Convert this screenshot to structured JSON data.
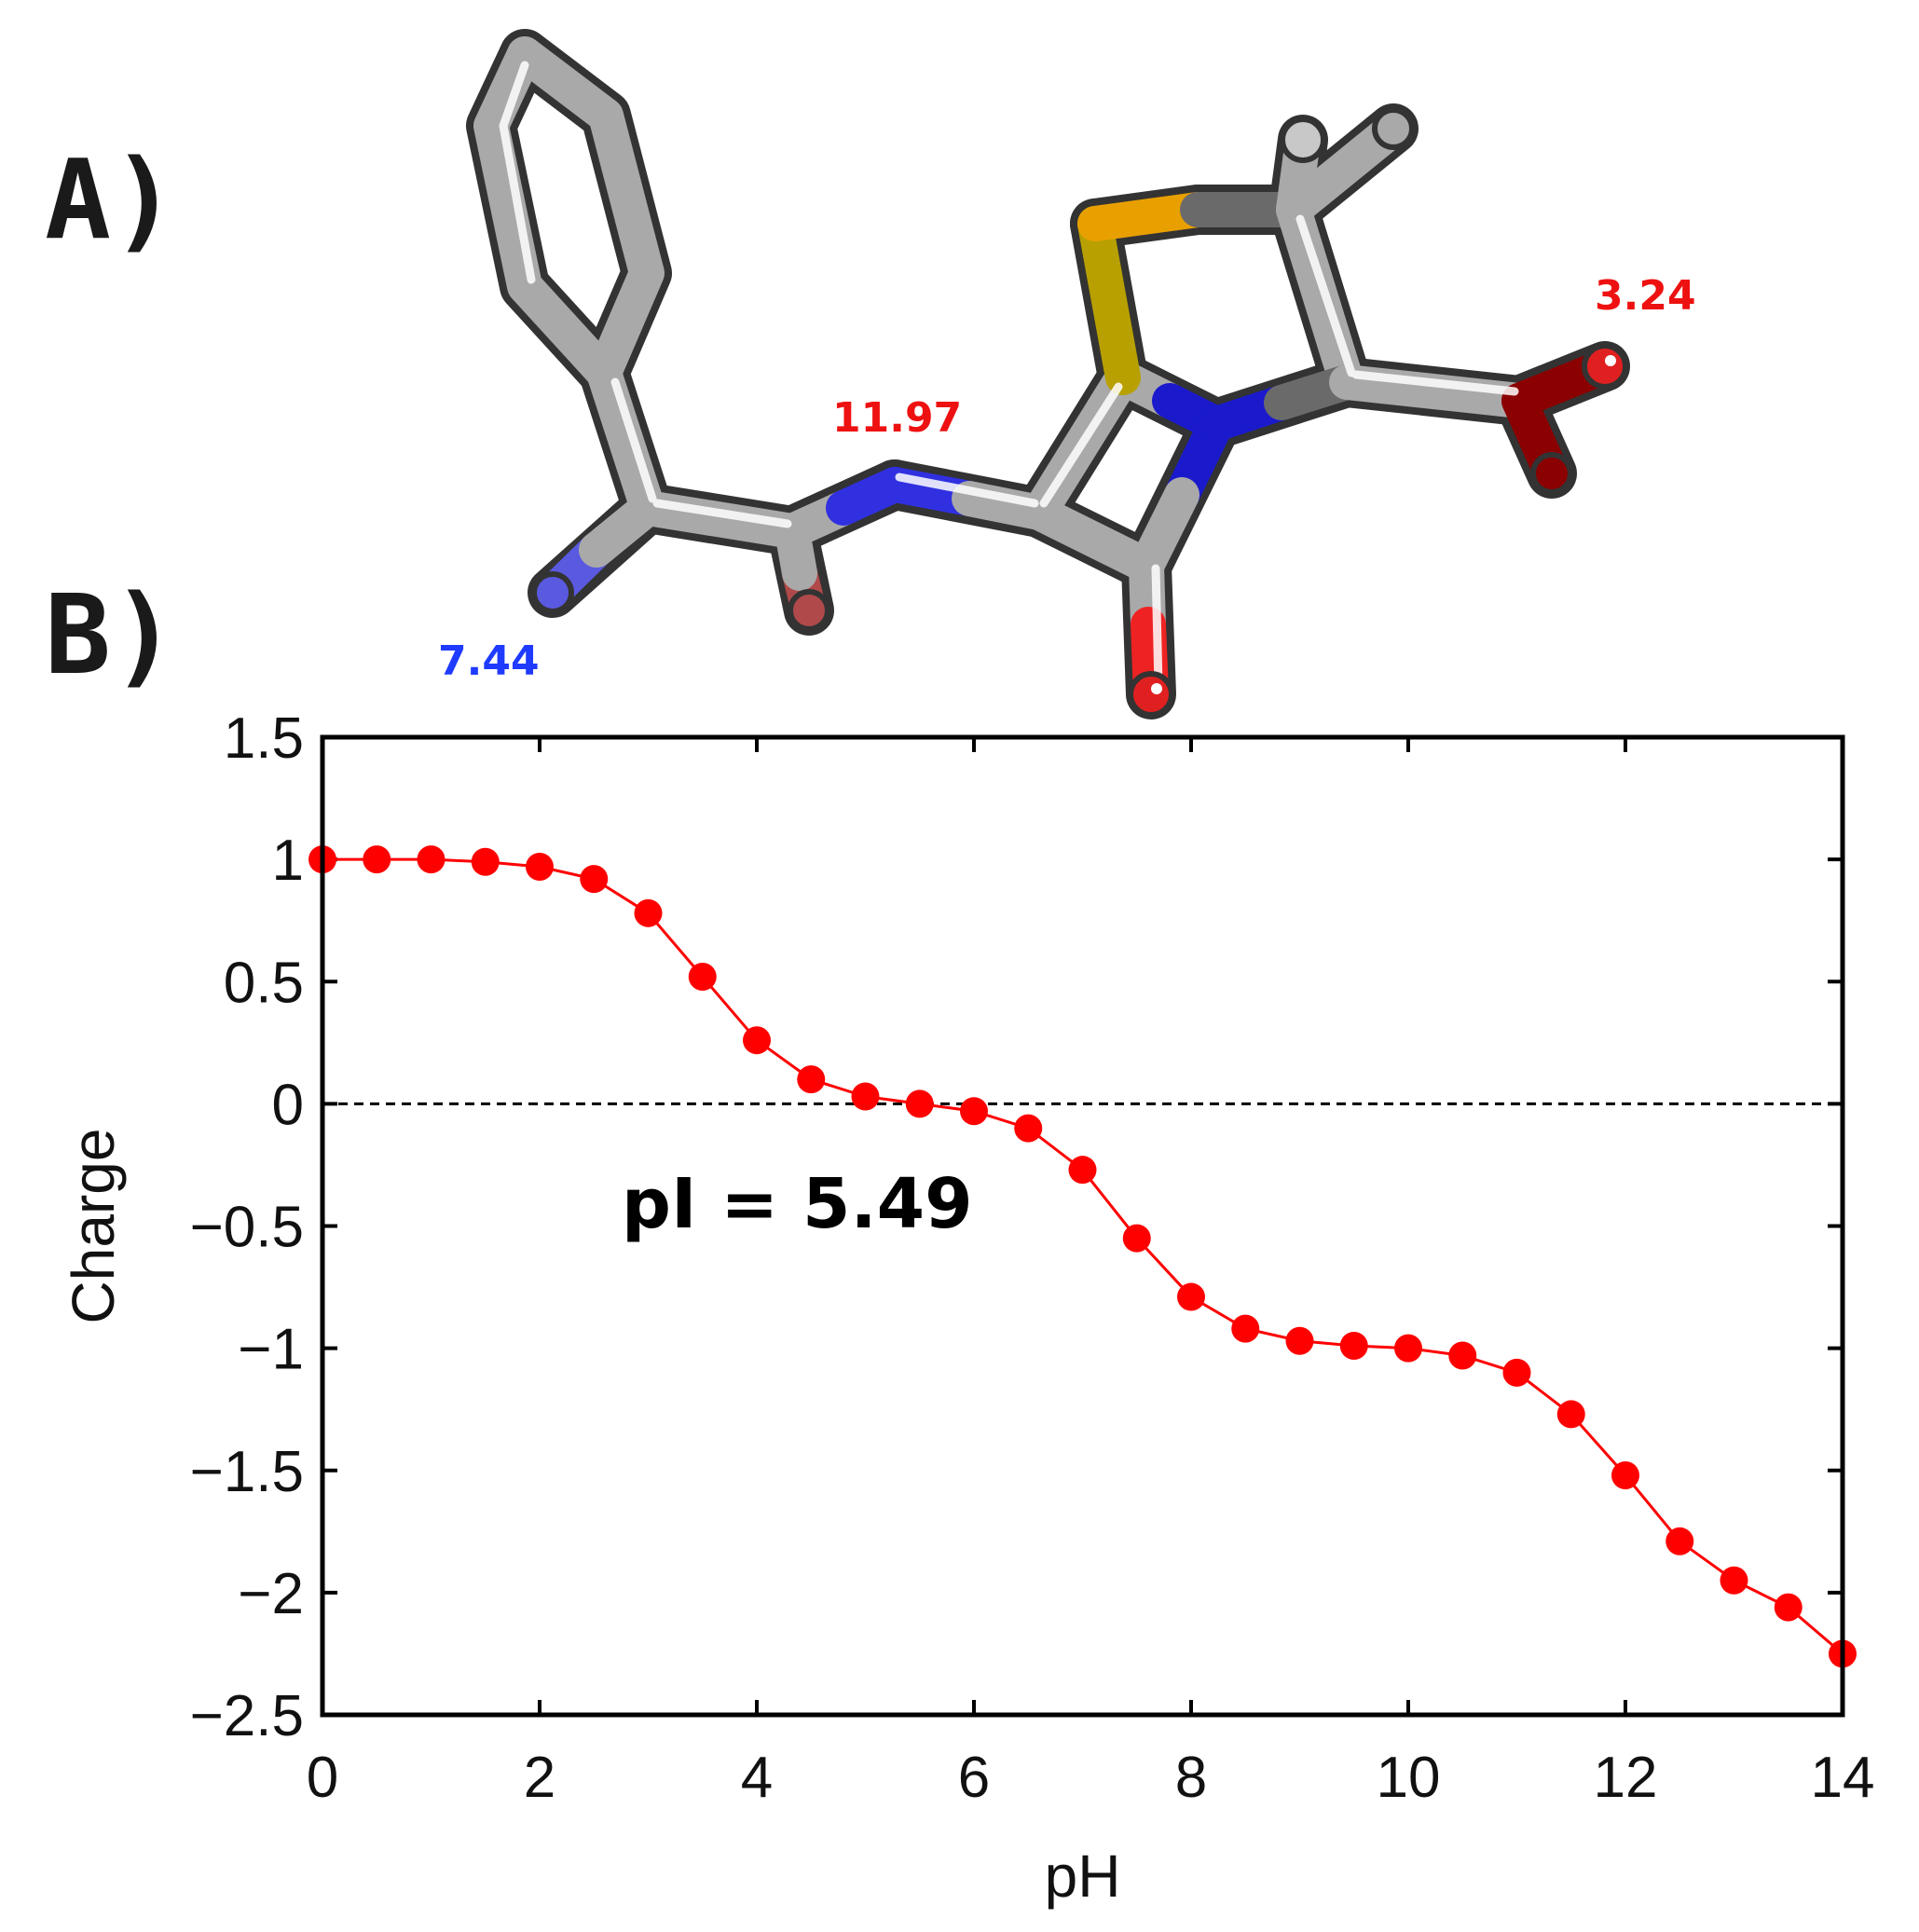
{
  "panels": {
    "a_label": "A)",
    "b_label": "B)"
  },
  "molecule": {
    "pka_labels": [
      {
        "text": "7.44",
        "color": "#1f3bff"
      },
      {
        "text": "11.97",
        "color": "#ee1111"
      },
      {
        "text": "3.24",
        "color": "#ee1111"
      }
    ],
    "atom_colors": {
      "carbon": "#a9a9a9",
      "nitrogen": "#2a2ad8",
      "oxygen": "#e01010",
      "sulfur": "#c8a400"
    }
  },
  "chart_data": {
    "type": "line",
    "xlabel": "pH",
    "ylabel": "Charge",
    "xlim": [
      0,
      14
    ],
    "ylim": [
      -2.5,
      1.5
    ],
    "xticks": [
      0,
      2,
      4,
      6,
      8,
      10,
      12,
      14
    ],
    "xtick_labels": [
      "0",
      "2",
      "4",
      "6",
      "8",
      "10",
      "12",
      "14"
    ],
    "yticks": [
      1.5,
      1,
      0.5,
      0,
      -0.5,
      -1,
      -1.5,
      -2,
      -2.5
    ],
    "ytick_labels": [
      "1.5",
      "1",
      "0.5",
      "0",
      "−0.5",
      "−1",
      "−1.5",
      "−2",
      "−2.5"
    ],
    "grid": false,
    "reference_line": {
      "y": 0,
      "style": "dashed"
    },
    "annotation": "pI = 5.49",
    "series": [
      {
        "color": "#ff0000",
        "marker": "circle",
        "x": [
          0,
          0.5,
          1,
          1.5,
          2,
          2.5,
          3,
          3.5,
          4,
          4.5,
          5,
          5.5,
          6,
          6.5,
          7,
          7.5,
          8,
          8.5,
          9,
          9.5,
          10,
          10.5,
          11,
          11.5,
          12,
          12.5,
          13,
          13.5,
          14
        ],
        "y": [
          1.0,
          1.0,
          1.0,
          0.99,
          0.97,
          0.92,
          0.78,
          0.52,
          0.26,
          0.1,
          0.03,
          0.0,
          -0.03,
          -0.1,
          -0.27,
          -0.55,
          -0.79,
          -0.92,
          -0.97,
          -0.99,
          -1.0,
          -1.03,
          -1.1,
          -1.27,
          -1.52,
          -1.79,
          -1.95,
          -2.06,
          -2.25
        ]
      }
    ]
  }
}
